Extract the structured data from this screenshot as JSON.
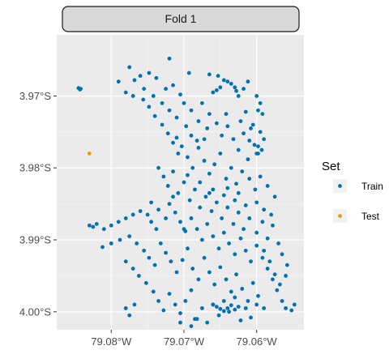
{
  "chart_data": {
    "type": "scatter",
    "facet_label": "Fold 1",
    "xlim": [
      -79.0875,
      -79.0535
    ],
    "ylim": [
      -4.0025,
      -3.9615
    ],
    "x_ticks": [
      {
        "value": -79.08,
        "label": "79.08°W"
      },
      {
        "value": -79.07,
        "label": "79.07°W"
      },
      {
        "value": -79.06,
        "label": "79.06°W"
      }
    ],
    "y_ticks": [
      {
        "value": -3.97,
        "label": "3.97°S"
      },
      {
        "value": -3.98,
        "label": "3.98°S"
      },
      {
        "value": -3.99,
        "label": "3.99°S"
      },
      {
        "value": -4.0,
        "label": "4.00°S"
      }
    ],
    "grid": true,
    "legend": {
      "title": "Set",
      "position": "right",
      "entries": [
        {
          "name": "Train",
          "color": "#0072B2"
        },
        {
          "name": "Test",
          "color": "#E69F00"
        }
      ]
    },
    "series": [
      {
        "name": "Train",
        "color": "#0072B2",
        "points": [
          [
            -79.0845,
            -3.9689
          ],
          [
            -79.0843,
            -3.9691
          ],
          [
            -79.0842,
            -3.969
          ],
          [
            -79.072,
            -3.9648
          ],
          [
            -79.0693,
            -3.9668
          ],
          [
            -79.0665,
            -3.967
          ],
          [
            -79.0653,
            -3.9672
          ],
          [
            -79.0645,
            -3.9678
          ],
          [
            -79.064,
            -3.968
          ],
          [
            -79.0635,
            -3.9683
          ],
          [
            -79.063,
            -3.9688
          ],
          [
            -79.0628,
            -3.9693
          ],
          [
            -79.0625,
            -3.97
          ],
          [
            -79.065,
            -3.9688
          ],
          [
            -79.0655,
            -3.9692
          ],
          [
            -79.066,
            -3.9695
          ],
          [
            -79.0618,
            -3.969
          ],
          [
            -79.0612,
            -3.968
          ],
          [
            -79.06,
            -3.97
          ],
          [
            -79.0595,
            -3.971
          ],
          [
            -79.0598,
            -3.972
          ],
          [
            -79.0592,
            -3.9725
          ],
          [
            -79.0605,
            -3.974
          ],
          [
            -79.0595,
            -3.975
          ],
          [
            -79.059,
            -3.976
          ],
          [
            -79.0598,
            -3.977
          ],
          [
            -79.0593,
            -3.9775
          ],
          [
            -79.06,
            -3.978
          ],
          [
            -79.0603,
            -3.9768
          ],
          [
            -79.0775,
            -3.966
          ],
          [
            -79.0768,
            -3.9678
          ],
          [
            -79.076,
            -3.9672
          ],
          [
            -79.0748,
            -3.9668
          ],
          [
            -79.0738,
            -3.9675
          ],
          [
            -79.0725,
            -3.969
          ],
          [
            -79.0715,
            -3.9685
          ],
          [
            -79.0705,
            -3.9698
          ],
          [
            -79.079,
            -3.968
          ],
          [
            -79.078,
            -3.9695
          ],
          [
            -79.077,
            -3.97
          ],
          [
            -79.0755,
            -3.969
          ],
          [
            -79.0742,
            -3.97
          ],
          [
            -79.073,
            -3.971
          ],
          [
            -79.072,
            -3.972
          ],
          [
            -79.071,
            -3.973
          ],
          [
            -79.07,
            -3.971
          ],
          [
            -79.069,
            -3.972
          ],
          [
            -79.068,
            -3.9735
          ],
          [
            -79.0675,
            -3.971
          ],
          [
            -79.0668,
            -3.9745
          ],
          [
            -79.0655,
            -3.9738
          ],
          [
            -79.0648,
            -3.9755
          ],
          [
            -79.064,
            -3.9742
          ],
          [
            -79.0632,
            -3.976
          ],
          [
            -79.0625,
            -3.9775
          ],
          [
            -79.0618,
            -3.9752
          ],
          [
            -79.0612,
            -3.9788
          ],
          [
            -79.071,
            -3.9758
          ],
          [
            -79.0703,
            -3.977
          ],
          [
            -79.0695,
            -3.9785
          ],
          [
            -79.0688,
            -3.98
          ],
          [
            -79.068,
            -3.9772
          ],
          [
            -79.0672,
            -3.979
          ],
          [
            -79.0665,
            -3.9808
          ],
          [
            -79.0658,
            -3.9795
          ],
          [
            -79.065,
            -3.978
          ],
          [
            -79.0642,
            -3.9815
          ],
          [
            -79.0635,
            -3.98
          ],
          [
            -79.0628,
            -3.9822
          ],
          [
            -79.062,
            -3.9805
          ],
          [
            -79.061,
            -3.9815
          ],
          [
            -79.0602,
            -3.983
          ],
          [
            -79.0735,
            -3.98
          ],
          [
            -79.0728,
            -3.9812
          ],
          [
            -79.0722,
            -3.9825
          ],
          [
            -79.0715,
            -3.9805
          ],
          [
            -79.0708,
            -3.9835
          ],
          [
            -79.07,
            -3.982
          ],
          [
            -79.0692,
            -3.9845
          ],
          [
            -79.0685,
            -3.983
          ],
          [
            -79.0678,
            -3.9855
          ],
          [
            -79.067,
            -3.984
          ],
          [
            -79.0662,
            -3.986
          ],
          [
            -79.0655,
            -3.9848
          ],
          [
            -79.0648,
            -3.987
          ],
          [
            -79.064,
            -3.9855
          ],
          [
            -79.0632,
            -3.9878
          ],
          [
            -79.0625,
            -3.9862
          ],
          [
            -79.0618,
            -3.9885
          ],
          [
            -79.061,
            -3.987
          ],
          [
            -79.06,
            -3.989
          ],
          [
            -79.0592,
            -3.9875
          ],
          [
            -79.0585,
            -3.9898
          ],
          [
            -79.0578,
            -3.988
          ],
          [
            -79.057,
            -3.9905
          ],
          [
            -79.0565,
            -3.992
          ],
          [
            -79.0558,
            -3.9935
          ],
          [
            -79.056,
            -3.995
          ],
          [
            -79.0568,
            -3.9962
          ],
          [
            -79.0575,
            -3.9948
          ],
          [
            -79.0582,
            -3.993
          ],
          [
            -79.059,
            -3.9915
          ],
          [
            -79.083,
            -3.988
          ],
          [
            -79.0825,
            -3.9882
          ],
          [
            -79.082,
            -3.9878
          ],
          [
            -79.081,
            -3.9885
          ],
          [
            -79.08,
            -3.988
          ],
          [
            -79.079,
            -3.9875
          ],
          [
            -79.078,
            -3.987
          ],
          [
            -79.077,
            -3.9865
          ],
          [
            -79.076,
            -3.986
          ],
          [
            -79.075,
            -3.9865
          ],
          [
            -79.0745,
            -3.9875
          ],
          [
            -79.0738,
            -3.9885
          ],
          [
            -79.0812,
            -3.991
          ],
          [
            -79.08,
            -3.9905
          ],
          [
            -79.0788,
            -3.99
          ],
          [
            -79.0775,
            -3.9895
          ],
          [
            -79.0765,
            -3.9905
          ],
          [
            -79.0755,
            -3.9915
          ],
          [
            -79.0748,
            -3.9925
          ],
          [
            -79.074,
            -3.9935
          ],
          [
            -79.0732,
            -3.9905
          ],
          [
            -79.0725,
            -3.9918
          ],
          [
            -79.0718,
            -3.993
          ],
          [
            -79.071,
            -3.9945
          ],
          [
            -79.0702,
            -3.9928
          ],
          [
            -79.0695,
            -3.9912
          ],
          [
            -79.0688,
            -3.994
          ],
          [
            -79.068,
            -3.9955
          ],
          [
            -79.0672,
            -3.9925
          ],
          [
            -79.0665,
            -3.9945
          ],
          [
            -79.0658,
            -3.9962
          ],
          [
            -79.065,
            -3.9938
          ],
          [
            -79.0642,
            -3.9955
          ],
          [
            -79.0635,
            -3.9972
          ],
          [
            -79.0628,
            -3.9948
          ],
          [
            -79.062,
            -3.9968
          ],
          [
            -79.0612,
            -3.9985
          ],
          [
            -79.0605,
            -3.996
          ],
          [
            -79.0598,
            -3.9978
          ],
          [
            -79.059,
            -3.9995
          ],
          [
            -79.078,
            -3.993
          ],
          [
            -79.077,
            -3.994
          ],
          [
            -79.0762,
            -3.995
          ],
          [
            -79.0752,
            -3.996
          ],
          [
            -79.0742,
            -3.9972
          ],
          [
            -79.0735,
            -3.9985
          ],
          [
            -79.0728,
            -3.9998
          ],
          [
            -79.072,
            -3.9975
          ],
          [
            -79.0712,
            -3.999
          ],
          [
            -79.0705,
            -4.0002
          ],
          [
            -79.0698,
            -3.9985
          ],
          [
            -79.069,
            -3.997
          ],
          [
            -79.0682,
            -4.001
          ],
          [
            -79.0675,
            -3.9995
          ],
          [
            -79.0668,
            -4.0015
          ],
          [
            -79.066,
            -3.999
          ],
          [
            -79.0652,
            -4.0005
          ],
          [
            -79.0645,
            -3.9985
          ],
          [
            -79.0638,
            -4.0
          ],
          [
            -79.063,
            -3.998
          ],
          [
            -79.0622,
            -4.0012
          ],
          [
            -79.0615,
            -3.9995
          ],
          [
            -79.0608,
            -4.0008
          ],
          [
            -79.06,
            -3.999
          ],
          [
            -79.056,
            -3.9995
          ],
          [
            -79.0552,
            -3.9998
          ],
          [
            -79.0548,
            -3.999
          ],
          [
            -79.066,
            -3.999
          ],
          [
            -79.0655,
            -3.9993
          ],
          [
            -79.065,
            -3.9996
          ],
          [
            -79.0645,
            -3.9999
          ],
          [
            -79.064,
            -3.9995
          ],
          [
            -79.0635,
            -3.9991
          ],
          [
            -79.063,
            -3.9997
          ],
          [
            -79.0625,
            -3.9993
          ],
          [
            -79.078,
            -3.9995
          ],
          [
            -79.0775,
            -4.0005
          ],
          [
            -79.0768,
            -3.999
          ],
          [
            -79.0705,
            -4.0015
          ],
          [
            -79.069,
            -4.002
          ],
          [
            -79.0685,
            -4.001
          ],
          [
            -79.0598,
            -3.978
          ],
          [
            -79.061,
            -3.9762
          ],
          [
            -79.073,
            -3.974
          ],
          [
            -79.0722,
            -3.9752
          ],
          [
            -79.0715,
            -3.9765
          ],
          [
            -79.0708,
            -3.978
          ],
          [
            -79.074,
            -3.9728
          ],
          [
            -79.0748,
            -3.9715
          ],
          [
            -79.0756,
            -3.9705
          ],
          [
            -79.069,
            -3.9755
          ],
          [
            -79.0697,
            -3.9742
          ],
          [
            -79.0682,
            -3.9762
          ],
          [
            -79.0665,
            -3.9725
          ],
          [
            -79.0672,
            -3.976
          ],
          [
            -79.0642,
            -3.9725
          ],
          [
            -79.0622,
            -3.9735
          ],
          [
            -79.0615,
            -3.9722
          ],
          [
            -79.0608,
            -3.9745
          ],
          [
            -79.072,
            -3.985
          ],
          [
            -79.0712,
            -3.9862
          ],
          [
            -79.0705,
            -3.9875
          ],
          [
            -79.0698,
            -3.9888
          ],
          [
            -79.069,
            -3.987
          ],
          [
            -79.0682,
            -3.9885
          ],
          [
            -79.0675,
            -3.99
          ],
          [
            -79.0668,
            -3.9878
          ],
          [
            -79.066,
            -3.9895
          ],
          [
            -79.0652,
            -3.9912
          ],
          [
            -79.0645,
            -3.989
          ],
          [
            -79.0638,
            -3.9905
          ],
          [
            -79.063,
            -3.992
          ],
          [
            -79.0622,
            -3.9898
          ],
          [
            -79.0615,
            -3.9915
          ],
          [
            -79.0608,
            -3.993
          ],
          [
            -79.06,
            -3.9908
          ],
          [
            -79.0592,
            -3.9925
          ],
          [
            -79.0585,
            -3.994
          ],
          [
            -79.0578,
            -3.9955
          ],
          [
            -79.0572,
            -3.997
          ],
          [
            -79.0565,
            -3.9985
          ],
          [
            -79.066,
            -3.983
          ],
          [
            -79.0645,
            -3.9838
          ],
          [
            -79.063,
            -3.9845
          ],
          [
            -79.0615,
            -3.9852
          ],
          [
            -79.06,
            -3.9848
          ],
          [
            -79.059,
            -3.9858
          ],
          [
            -79.058,
            -3.9865
          ],
          [
            -79.0575,
            -3.984
          ],
          [
            -79.0585,
            -3.9825
          ],
          [
            -79.0595,
            -3.9812
          ],
          [
            -79.07,
            -3.9885
          ],
          [
            -79.0725,
            -3.987
          ],
          [
            -79.0735,
            -3.9858
          ],
          [
            -79.0745,
            -3.9848
          ],
          [
            -79.0715,
            -3.984
          ],
          [
            -79.0695,
            -3.981
          ],
          [
            -79.0678,
            -3.982
          ],
          [
            -79.0665,
            -3.9835
          ],
          [
            -79.064,
            -3.9828
          ],
          [
            -79.0625,
            -3.9835
          ]
        ]
      },
      {
        "name": "Test",
        "color": "#E69F00",
        "points": [
          [
            -79.083,
            -3.978
          ]
        ]
      }
    ]
  }
}
